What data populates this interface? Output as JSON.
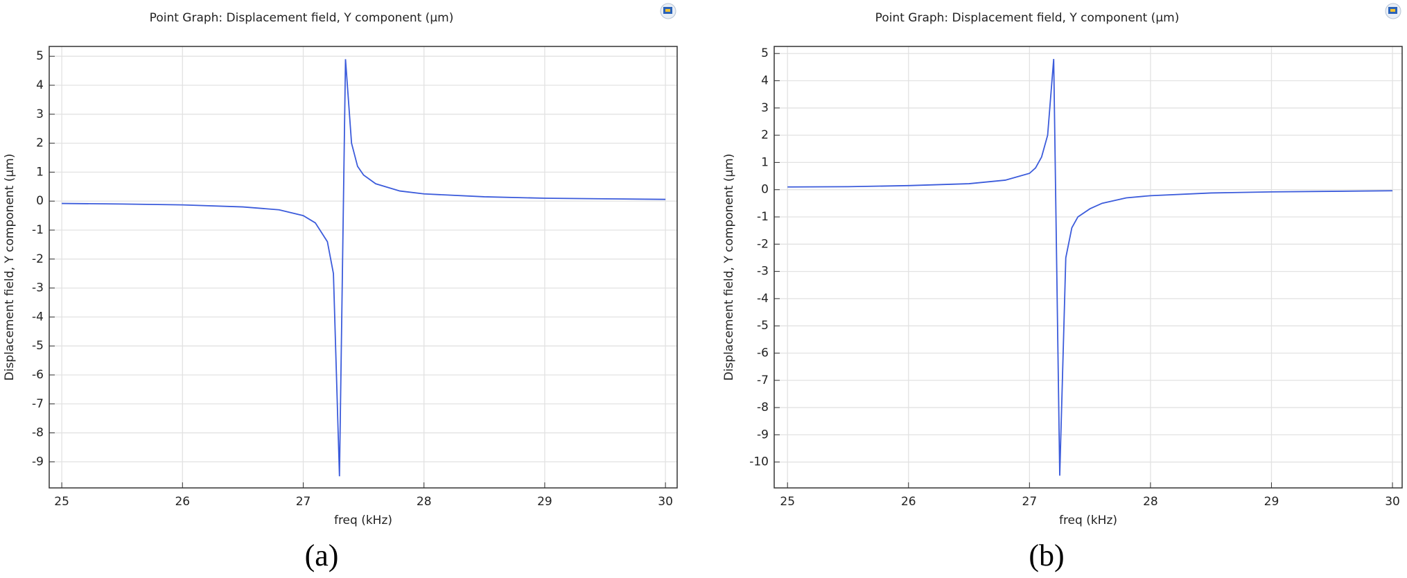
{
  "chart_data": [
    {
      "type": "line",
      "title": "Point Graph: Displacement field, Y component (µm)",
      "xlabel": "freq (kHz)",
      "ylabel": "Displacement field, Y component (µm)",
      "caption": "(a)",
      "x": [
        25,
        25.5,
        26,
        26.5,
        26.8,
        27,
        27.1,
        27.2,
        27.25,
        27.3,
        27.35,
        27.4,
        27.45,
        27.5,
        27.6,
        27.8,
        28,
        28.5,
        29,
        29.5,
        30
      ],
      "series": [
        {
          "color": "#3b5bdb",
          "values": [
            -0.08,
            -0.1,
            -0.13,
            -0.2,
            -0.3,
            -0.5,
            -0.75,
            -1.4,
            -2.5,
            -9.5,
            4.9,
            2.0,
            1.2,
            0.9,
            0.6,
            0.35,
            0.25,
            0.15,
            0.1,
            0.08,
            0.06
          ]
        }
      ],
      "xlim": [
        24.896,
        30.097
      ],
      "ylim": [
        -9.9,
        5.34
      ],
      "xticks": [
        25,
        26,
        27,
        28,
        29,
        30
      ],
      "yticks": [
        5,
        4,
        3,
        2,
        1,
        0,
        -1,
        -2,
        -3,
        -4,
        -5,
        -6,
        -7,
        -8,
        -9
      ],
      "grid": true
    },
    {
      "type": "line",
      "title": "Point Graph: Displacement field, Y component (µm)",
      "xlabel": "freq (kHz)",
      "ylabel": "Displacement field, Y component (µm)",
      "caption": "(b)",
      "x": [
        25,
        25.5,
        26,
        26.5,
        26.8,
        27,
        27.05,
        27.1,
        27.15,
        27.2,
        27.25,
        27.3,
        27.35,
        27.4,
        27.5,
        27.6,
        27.8,
        28,
        28.5,
        29,
        29.5,
        30
      ],
      "series": [
        {
          "color": "#3b5bdb",
          "values": [
            0.1,
            0.11,
            0.15,
            0.22,
            0.35,
            0.6,
            0.8,
            1.2,
            2.0,
            4.8,
            -10.5,
            -2.5,
            -1.4,
            -1.0,
            -0.7,
            -0.5,
            -0.3,
            -0.22,
            -0.12,
            -0.08,
            -0.06,
            -0.04
          ]
        }
      ],
      "xlim": [
        24.89,
        30.08
      ],
      "ylim": [
        -10.95,
        5.26
      ],
      "xticks": [
        25,
        26,
        27,
        28,
        29,
        30
      ],
      "yticks": [
        5,
        4,
        3,
        2,
        1,
        0,
        -1,
        -2,
        -3,
        -4,
        -5,
        -6,
        -7,
        -8,
        -9,
        -10
      ],
      "grid": true
    }
  ]
}
